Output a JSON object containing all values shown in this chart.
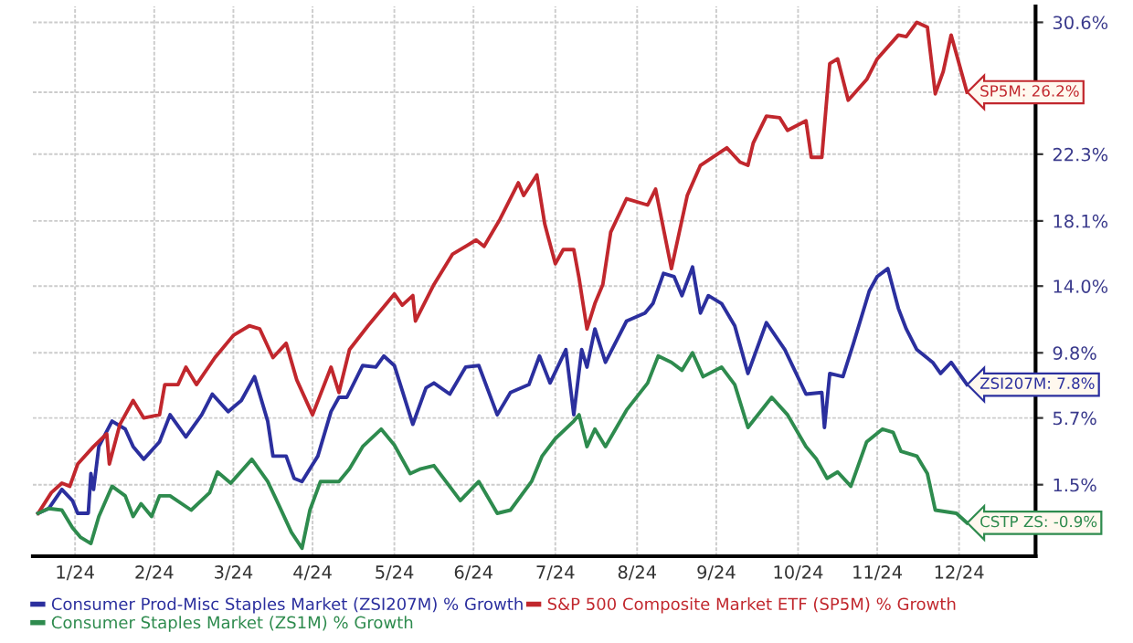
{
  "chart_data": {
    "type": "line",
    "series": [
      {
        "name": "Consumer Prod-Misc Staples Market (ZSI207M) % Growth",
        "color": "#2b2f9e",
        "x": [
          "2024-01-02",
          "2024-01-06",
          "2024-01-11",
          "2024-01-15",
          "2024-01-17",
          "2024-01-21",
          "2024-01-22",
          "2024-01-23",
          "2024-01-25",
          "2024-01-30",
          "2024-02-04",
          "2024-02-07",
          "2024-02-11",
          "2024-02-17",
          "2024-02-21",
          "2024-02-27",
          "2024-03-04",
          "2024-03-08",
          "2024-03-14",
          "2024-03-19",
          "2024-03-24",
          "2024-03-29",
          "2024-03-31",
          "2024-04-05",
          "2024-04-08",
          "2024-04-11",
          "2024-04-17",
          "2024-04-22",
          "2024-04-25",
          "2024-04-28",
          "2024-05-04",
          "2024-05-09",
          "2024-05-12",
          "2024-05-16",
          "2024-05-23",
          "2024-05-28",
          "2024-05-31",
          "2024-06-06",
          "2024-06-12",
          "2024-06-17",
          "2024-06-24",
          "2024-06-29",
          "2024-07-06",
          "2024-07-10",
          "2024-07-14",
          "2024-07-20",
          "2024-07-23",
          "2024-07-26",
          "2024-07-28",
          "2024-07-31",
          "2024-08-04",
          "2024-08-12",
          "2024-08-19",
          "2024-08-22",
          "2024-08-26",
          "2024-08-30",
          "2024-09-02",
          "2024-09-06",
          "2024-09-09",
          "2024-09-12",
          "2024-09-17",
          "2024-09-22",
          "2024-09-27",
          "2024-10-04",
          "2024-10-11",
          "2024-10-19",
          "2024-10-25",
          "2024-10-26",
          "2024-10-28",
          "2024-11-02",
          "2024-11-06",
          "2024-11-12",
          "2024-11-15",
          "2024-11-19",
          "2024-11-23",
          "2024-11-26",
          "2024-11-30",
          "2024-12-06",
          "2024-12-09",
          "2024-12-13",
          "2024-12-19"
        ],
        "values": [
          -0.3,
          0.0,
          1.2,
          0.5,
          -0.3,
          -0.3,
          2.2,
          1.2,
          3.9,
          5.5,
          5.0,
          3.9,
          3.1,
          4.2,
          5.9,
          4.5,
          5.9,
          7.2,
          6.1,
          6.8,
          8.3,
          5.5,
          3.3,
          3.3,
          1.9,
          1.7,
          3.3,
          6.1,
          7.0,
          7.0,
          9.0,
          8.9,
          9.6,
          9.0,
          5.3,
          7.6,
          7.9,
          7.2,
          8.9,
          9.0,
          5.9,
          7.3,
          7.8,
          9.6,
          7.9,
          10.0,
          5.9,
          10.0,
          8.9,
          11.3,
          9.2,
          11.8,
          12.3,
          12.9,
          14.8,
          14.6,
          13.4,
          15.2,
          12.3,
          13.4,
          12.9,
          11.5,
          8.5,
          11.7,
          10.0,
          7.2,
          7.3,
          5.1,
          8.5,
          8.3,
          10.4,
          13.7,
          14.6,
          15.1,
          12.6,
          11.3,
          10.0,
          9.2,
          8.5,
          9.2,
          7.8
        ]
      },
      {
        "name": "S&P 500 Composite Market ETF (SP5M) % Growth",
        "color": "#c1272d",
        "x": [
          "2024-01-02",
          "2024-01-07",
          "2024-01-11",
          "2024-01-14",
          "2024-01-17",
          "2024-01-23",
          "2024-01-28",
          "2024-01-29",
          "2024-02-02",
          "2024-02-07",
          "2024-02-11",
          "2024-02-17",
          "2024-02-19",
          "2024-02-24",
          "2024-02-27",
          "2024-03-02",
          "2024-03-09",
          "2024-03-16",
          "2024-03-22",
          "2024-03-26",
          "2024-03-31",
          "2024-04-05",
          "2024-04-09",
          "2024-04-15",
          "2024-04-22",
          "2024-04-25",
          "2024-04-29",
          "2024-05-06",
          "2024-05-16",
          "2024-05-19",
          "2024-05-23",
          "2024-05-24",
          "2024-05-31",
          "2024-06-07",
          "2024-06-16",
          "2024-06-19",
          "2024-06-25",
          "2024-07-02",
          "2024-07-04",
          "2024-07-09",
          "2024-07-12",
          "2024-07-16",
          "2024-07-19",
          "2024-07-23",
          "2024-07-25",
          "2024-07-28",
          "2024-07-31",
          "2024-08-03",
          "2024-08-06",
          "2024-08-12",
          "2024-08-20",
          "2024-08-23",
          "2024-08-29",
          "2024-09-04",
          "2024-09-09",
          "2024-09-19",
          "2024-09-24",
          "2024-09-27",
          "2024-09-29",
          "2024-10-04",
          "2024-10-09",
          "2024-10-12",
          "2024-10-19",
          "2024-10-21",
          "2024-10-25",
          "2024-10-28",
          "2024-10-31",
          "2024-11-04",
          "2024-11-11",
          "2024-11-15",
          "2024-11-23",
          "2024-11-26",
          "2024-11-30",
          "2024-12-04",
          "2024-12-07",
          "2024-12-10",
          "2024-12-13",
          "2024-12-19"
        ],
        "values": [
          -0.3,
          1.0,
          1.6,
          1.4,
          2.8,
          3.9,
          4.7,
          2.8,
          5.3,
          6.8,
          5.7,
          5.9,
          7.8,
          7.8,
          8.9,
          7.8,
          9.5,
          10.9,
          11.5,
          11.3,
          9.5,
          10.4,
          8.1,
          5.9,
          8.9,
          7.3,
          10.0,
          11.5,
          13.5,
          12.8,
          13.4,
          11.8,
          14.1,
          16.0,
          16.9,
          16.5,
          18.2,
          20.5,
          19.7,
          21.0,
          17.9,
          15.4,
          16.3,
          16.3,
          14.5,
          11.3,
          12.9,
          14.1,
          17.4,
          19.5,
          19.1,
          20.1,
          15.1,
          19.7,
          21.6,
          22.7,
          21.8,
          21.6,
          23.0,
          24.7,
          24.6,
          23.8,
          24.4,
          22.1,
          22.1,
          28.0,
          28.3,
          25.7,
          27.0,
          28.3,
          29.8,
          29.7,
          30.6,
          30.3,
          26.1,
          27.5,
          29.8,
          26.2
        ]
      },
      {
        "name": "Consumer Staples Market (ZS1M) % Growth",
        "color": "#2e8b4e",
        "x": [
          "2024-01-02",
          "2024-01-06",
          "2024-01-11",
          "2024-01-15",
          "2024-01-18",
          "2024-01-22",
          "2024-01-25",
          "2024-01-30",
          "2024-02-04",
          "2024-02-07",
          "2024-02-10",
          "2024-02-14",
          "2024-02-17",
          "2024-02-21",
          "2024-02-29",
          "2024-03-07",
          "2024-03-10",
          "2024-03-15",
          "2024-03-23",
          "2024-03-29",
          "2024-04-02",
          "2024-04-07",
          "2024-04-11",
          "2024-04-14",
          "2024-04-18",
          "2024-04-25",
          "2024-04-29",
          "2024-05-04",
          "2024-05-11",
          "2024-05-16",
          "2024-05-22",
          "2024-05-26",
          "2024-05-31",
          "2024-06-05",
          "2024-06-10",
          "2024-06-17",
          "2024-06-24",
          "2024-06-29",
          "2024-07-07",
          "2024-07-11",
          "2024-07-16",
          "2024-07-23",
          "2024-07-25",
          "2024-07-28",
          "2024-07-31",
          "2024-08-04",
          "2024-08-12",
          "2024-08-20",
          "2024-08-24",
          "2024-08-29",
          "2024-09-02",
          "2024-09-06",
          "2024-09-10",
          "2024-09-17",
          "2024-09-22",
          "2024-09-27",
          "2024-10-06",
          "2024-10-12",
          "2024-10-19",
          "2024-10-23",
          "2024-10-27",
          "2024-10-31",
          "2024-11-05",
          "2024-11-11",
          "2024-11-17",
          "2024-11-21",
          "2024-11-24",
          "2024-11-30",
          "2024-12-04",
          "2024-12-07",
          "2024-12-15",
          "2024-12-19"
        ],
        "values": [
          -0.3,
          0.0,
          -0.1,
          -1.2,
          -1.8,
          -2.2,
          -0.5,
          1.4,
          0.8,
          -0.5,
          0.3,
          -0.5,
          0.8,
          0.8,
          -0.1,
          1.0,
          2.3,
          1.6,
          3.1,
          1.7,
          0.3,
          -1.5,
          -2.5,
          -0.1,
          1.7,
          1.7,
          2.5,
          3.9,
          5.0,
          4.0,
          2.2,
          2.5,
          2.7,
          1.6,
          0.5,
          1.7,
          -0.3,
          -0.1,
          1.7,
          3.3,
          4.4,
          5.5,
          5.9,
          3.9,
          5.0,
          3.9,
          6.2,
          7.9,
          9.6,
          9.2,
          8.7,
          9.8,
          8.3,
          8.9,
          7.8,
          5.1,
          7.0,
          5.9,
          3.9,
          3.1,
          1.9,
          2.3,
          1.4,
          4.2,
          5.0,
          4.8,
          3.6,
          3.3,
          2.2,
          -0.1,
          -0.3,
          -0.9
        ]
      }
    ],
    "annotations": [
      {
        "text": "SP5M: 26.2%",
        "x": "2024-12-19",
        "y": 26.2
      },
      {
        "text": "ZSI207M: 7.8%",
        "x": "2024-12-19",
        "y": 7.8
      },
      {
        "text": "CSTP ZS: -0.9%",
        "x": "2024-12-19",
        "y": -0.9
      }
    ],
    "xlim": [
      "2023-12-31",
      "2025-01-14"
    ],
    "xticks": [
      {
        "value": "2024-01-16",
        "label": "1/24"
      },
      {
        "value": "2024-02-15",
        "label": "2/24"
      },
      {
        "value": "2024-03-16",
        "label": "3/24"
      },
      {
        "value": "2024-04-15",
        "label": "4/24"
      },
      {
        "value": "2024-05-16",
        "label": "5/24"
      },
      {
        "value": "2024-06-15",
        "label": "6/24"
      },
      {
        "value": "2024-07-16",
        "label": "7/24"
      },
      {
        "value": "2024-08-16",
        "label": "8/24"
      },
      {
        "value": "2024-09-15",
        "label": "9/24"
      },
      {
        "value": "2024-10-16",
        "label": "10/24"
      },
      {
        "value": "2024-11-15",
        "label": "11/24"
      },
      {
        "value": "2024-12-16",
        "label": "12/24"
      }
    ],
    "ylim": [
      -3.0,
      31.6
    ],
    "yticks": [
      {
        "value": 1.5,
        "label": "1.5%"
      },
      {
        "value": 5.7,
        "label": "5.7%"
      },
      {
        "value": 9.8,
        "label": "9.8%"
      },
      {
        "value": 14.0,
        "label": "14.0%"
      },
      {
        "value": 18.1,
        "label": "18.1%"
      },
      {
        "value": 22.3,
        "label": "22.3%"
      },
      {
        "value": 26.2,
        "label": null
      },
      {
        "value": 30.6,
        "label": "30.6%"
      }
    ],
    "grid": true,
    "legend": "bottom left",
    "marker": "none",
    "line_style": "solid"
  }
}
